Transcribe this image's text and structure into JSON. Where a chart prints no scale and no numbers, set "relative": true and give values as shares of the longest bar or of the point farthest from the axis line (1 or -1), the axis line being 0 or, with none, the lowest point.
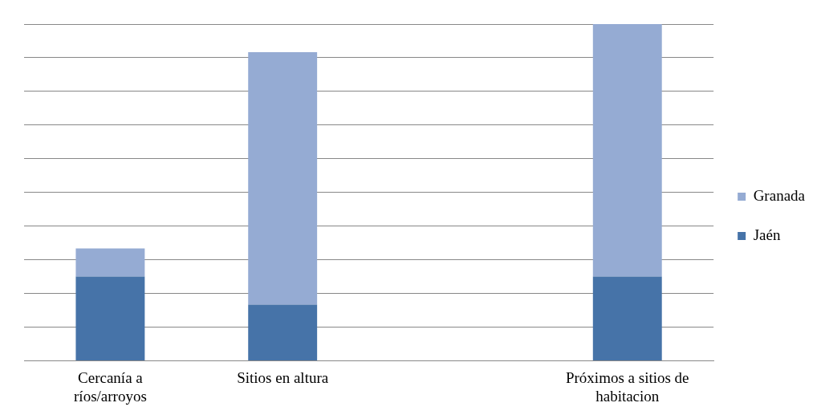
{
  "chart_data": {
    "type": "bar",
    "stacked": true,
    "relative": true,
    "categories": [
      "Cercanía a ríos/arroyos",
      "Sitios en altura",
      null,
      "Próximos a sitios de habitacion"
    ],
    "series": [
      {
        "name": "Jaén",
        "color": "#4673a8",
        "values": [
          0.25,
          0.1667,
          null,
          0.25
        ]
      },
      {
        "name": "Granada",
        "color": "#95abd3",
        "values": [
          0.0833,
          0.75,
          null,
          0.75
        ]
      }
    ],
    "grid": "y",
    "legend": "right"
  }
}
